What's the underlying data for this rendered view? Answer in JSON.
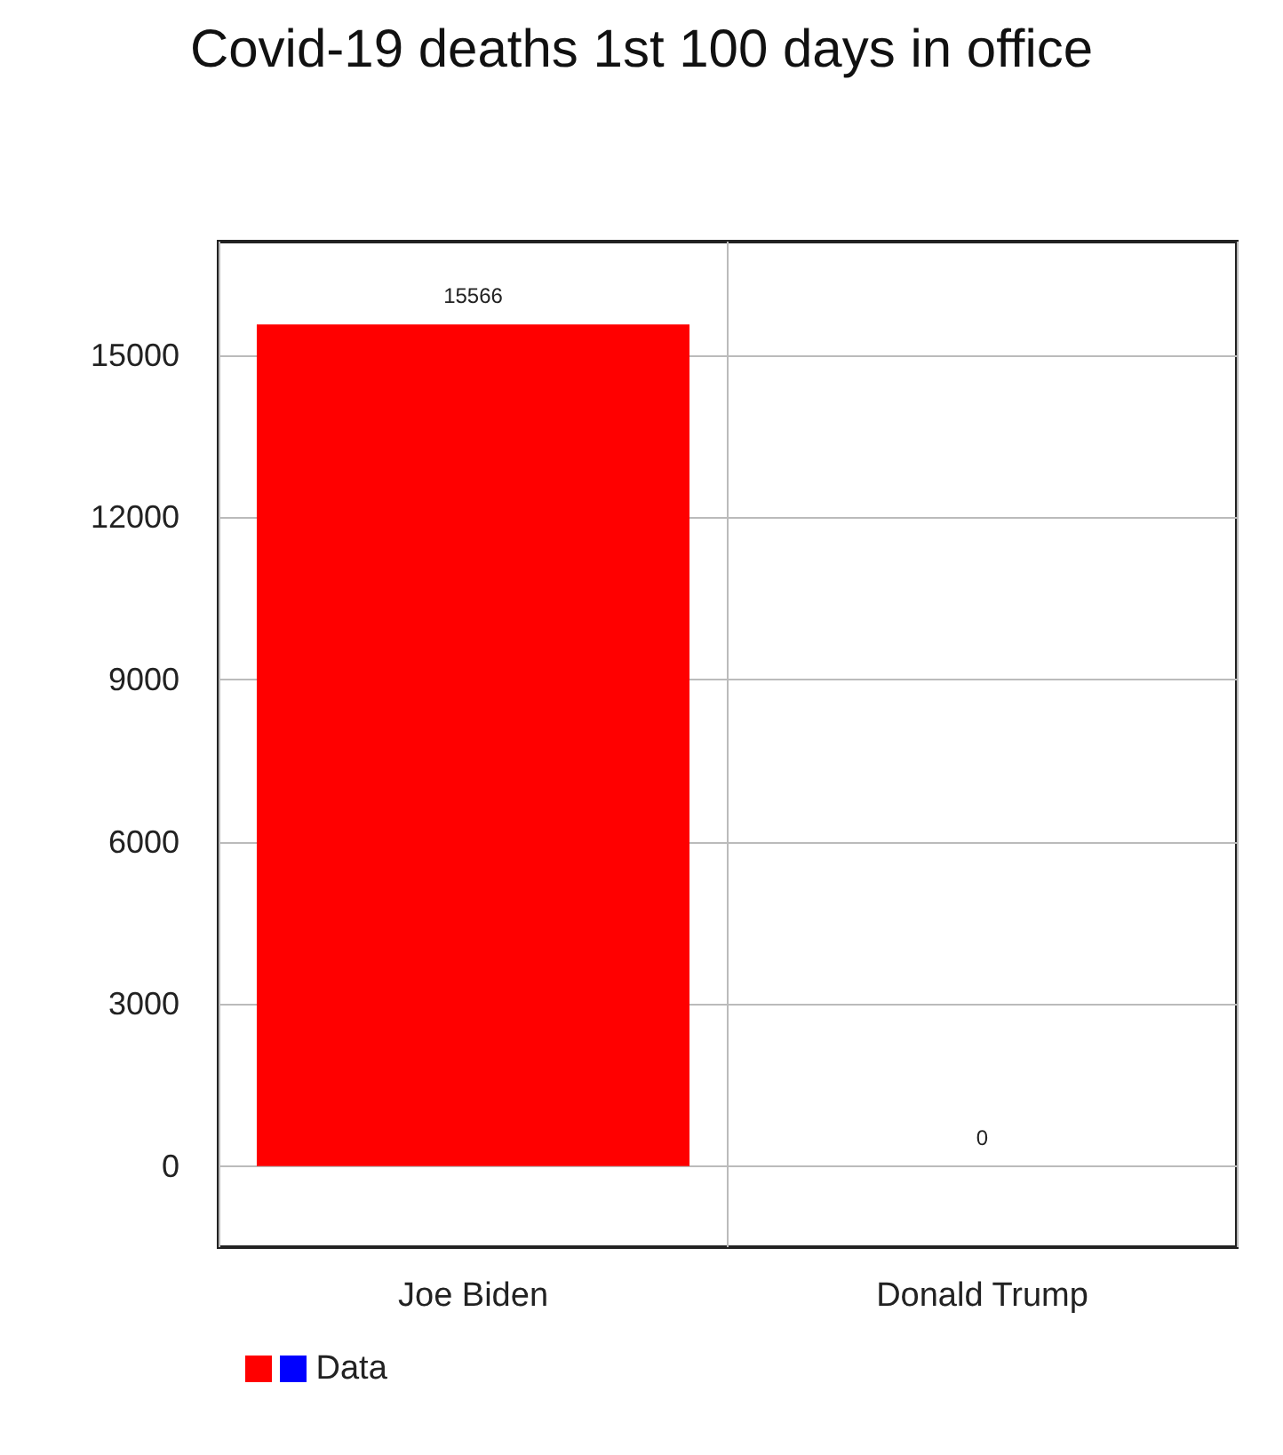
{
  "chart_data": {
    "type": "bar",
    "title": "Covid-19 deaths 1st 100 days in office",
    "categories": [
      "Joe Biden",
      "Donald Trump"
    ],
    "series": [
      {
        "name": "Data",
        "colors": [
          "#ff0000",
          "#0000ff"
        ],
        "values": [
          15566,
          0
        ]
      }
    ],
    "ylim": [
      -1500,
      17100
    ],
    "yticks": [
      0,
      3000,
      6000,
      9000,
      12000,
      15000
    ],
    "grid": true,
    "legend": "bottom left",
    "data_labels": true
  }
}
